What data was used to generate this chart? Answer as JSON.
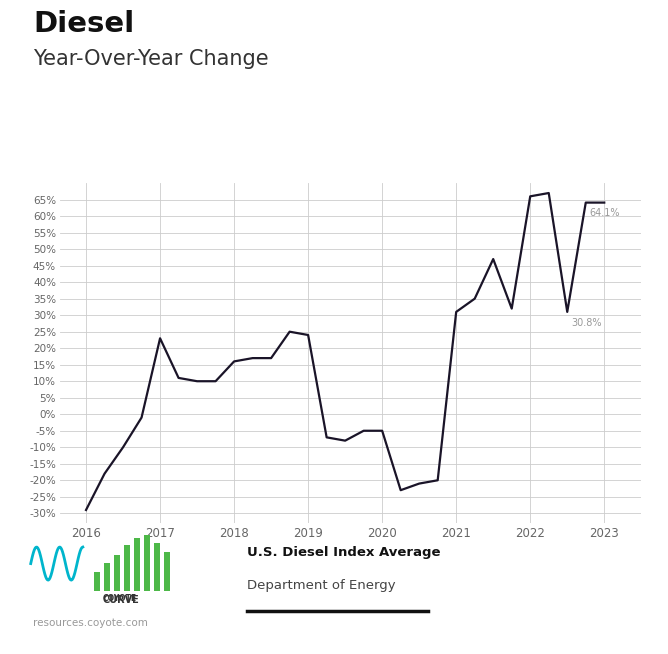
{
  "title_bold": "Diesel",
  "title_sub": "Year-Over-Year Change",
  "line_color": "#1a1428",
  "line_width": 1.6,
  "background_color": "#ffffff",
  "grid_color": "#cccccc",
  "x_values": [
    2016.0,
    2016.25,
    2016.5,
    2016.75,
    2017.0,
    2017.25,
    2017.5,
    2017.75,
    2018.0,
    2018.25,
    2018.5,
    2018.75,
    2019.0,
    2019.25,
    2019.5,
    2019.75,
    2020.0,
    2020.25,
    2020.5,
    2020.75,
    2021.0,
    2021.25,
    2021.5,
    2021.75,
    2022.0,
    2022.25,
    2022.5,
    2022.75,
    2023.0
  ],
  "y_values": [
    -29,
    -18,
    -10,
    -1,
    23,
    11,
    10,
    10,
    16,
    17,
    17,
    25,
    24,
    -7,
    -8,
    -5,
    -5,
    -23,
    -21,
    -20,
    31,
    35,
    47,
    32,
    66,
    67,
    31,
    64.1,
    64.1
  ],
  "yticks": [
    -30,
    -25,
    -20,
    -15,
    -10,
    -5,
    0,
    5,
    10,
    15,
    20,
    25,
    30,
    35,
    40,
    45,
    50,
    55,
    60,
    65
  ],
  "xticks": [
    2016,
    2017,
    2018,
    2019,
    2020,
    2021,
    2022,
    2023
  ],
  "ylim": [
    -33,
    70
  ],
  "xlim": [
    2015.65,
    2023.5
  ],
  "ann_308_x": 2022.52,
  "ann_308_y": 30.8,
  "ann_308_text": "30.8%",
  "ann_641_x": 2022.77,
  "ann_641_y": 64.1,
  "ann_641_text": "64.1%",
  "legend_bold": "U.S. Diesel Index Average",
  "legend_sub": "Department of Energy",
  "footer": "resources.coyote.com",
  "tick_label_color": "#666666",
  "annotation_color": "#999999"
}
